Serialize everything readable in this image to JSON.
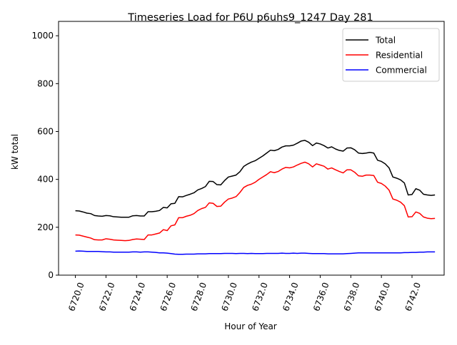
{
  "chart_data": {
    "type": "line",
    "title": "Timeseries Load for P6U p6uhs9_1247  Day 281",
    "xlabel": "Hour of Year",
    "ylabel": "kW total",
    "xlim": [
      6718.9,
      6744.1
    ],
    "ylim": [
      0,
      1060
    ],
    "x_ticks": [
      6720,
      6722,
      6724,
      6726,
      6728,
      6730,
      6732,
      6734,
      6736,
      6738,
      6740,
      6742
    ],
    "x_tick_labels": [
      "6720.0",
      "6722.0",
      "6724.0",
      "6726.0",
      "6728.0",
      "6730.0",
      "6732.0",
      "6734.0",
      "6736.0",
      "6738.0",
      "6740.0",
      "6742.0"
    ],
    "y_ticks": [
      0,
      200,
      400,
      600,
      800,
      1000
    ],
    "y_tick_labels": [
      "0",
      "200",
      "400",
      "600",
      "800",
      "1000"
    ],
    "x_start": 6720,
    "x_step": 0.25,
    "legend_position": "top-right",
    "grid": false,
    "series": [
      {
        "name": "Total",
        "color": "#000000",
        "values": [
          269,
          268,
          264,
          259,
          257,
          249,
          247,
          246,
          249,
          248,
          244,
          243,
          242,
          242,
          242,
          248,
          249,
          247,
          247,
          265,
          265,
          267,
          270,
          283,
          281,
          298,
          300,
          328,
          327,
          333,
          338,
          344,
          356,
          362,
          370,
          392,
          391,
          378,
          377,
          395,
          410,
          414,
          418,
          432,
          454,
          464,
          472,
          478,
          488,
          498,
          510,
          522,
          520,
          525,
          535,
          540,
          540,
          543,
          551,
          560,
          563,
          555,
          541,
          552,
          548,
          541,
          531,
          536,
          527,
          521,
          518,
          531,
          532,
          524,
          510,
          508,
          510,
          513,
          510,
          480,
          475,
          465,
          448,
          410,
          405,
          398,
          385,
          335,
          337,
          361,
          355,
          338,
          335,
          333,
          335
        ]
      },
      {
        "name": "Residential",
        "color": "#ff0000",
        "values": [
          168,
          167,
          163,
          159,
          155,
          148,
          147,
          147,
          152,
          150,
          147,
          146,
          145,
          144,
          145,
          149,
          151,
          150,
          149,
          168,
          168,
          172,
          176,
          190,
          186,
          206,
          210,
          240,
          240,
          246,
          250,
          257,
          270,
          278,
          283,
          302,
          300,
          287,
          288,
          305,
          318,
          322,
          328,
          345,
          366,
          375,
          380,
          388,
          400,
          410,
          420,
          432,
          428,
          433,
          443,
          450,
          448,
          452,
          460,
          467,
          472,
          465,
          452,
          465,
          460,
          455,
          443,
          448,
          440,
          433,
          427,
          440,
          440,
          430,
          415,
          413,
          418,
          418,
          416,
          388,
          383,
          372,
          355,
          318,
          313,
          305,
          290,
          243,
          244,
          264,
          258,
          243,
          238,
          236,
          237
        ]
      },
      {
        "name": "Commercial",
        "color": "#0000ff",
        "values": [
          100,
          101,
          100,
          99,
          99,
          99,
          99,
          98,
          97,
          97,
          96,
          96,
          96,
          96,
          96,
          97,
          97,
          96,
          97,
          97,
          96,
          95,
          93,
          93,
          92,
          90,
          88,
          87,
          87,
          88,
          88,
          88,
          89,
          89,
          89,
          90,
          90,
          90,
          90,
          91,
          91,
          91,
          90,
          91,
          91,
          90,
          91,
          90,
          90,
          90,
          91,
          91,
          91,
          91,
          92,
          91,
          91,
          92,
          91,
          92,
          92,
          91,
          90,
          90,
          90,
          90,
          89,
          89,
          89,
          89,
          89,
          90,
          91,
          92,
          93,
          93,
          93,
          93,
          93,
          93,
          93,
          93,
          93,
          93,
          93,
          93,
          94,
          94,
          95,
          95,
          96,
          96,
          97,
          97,
          97
        ]
      }
    ]
  }
}
